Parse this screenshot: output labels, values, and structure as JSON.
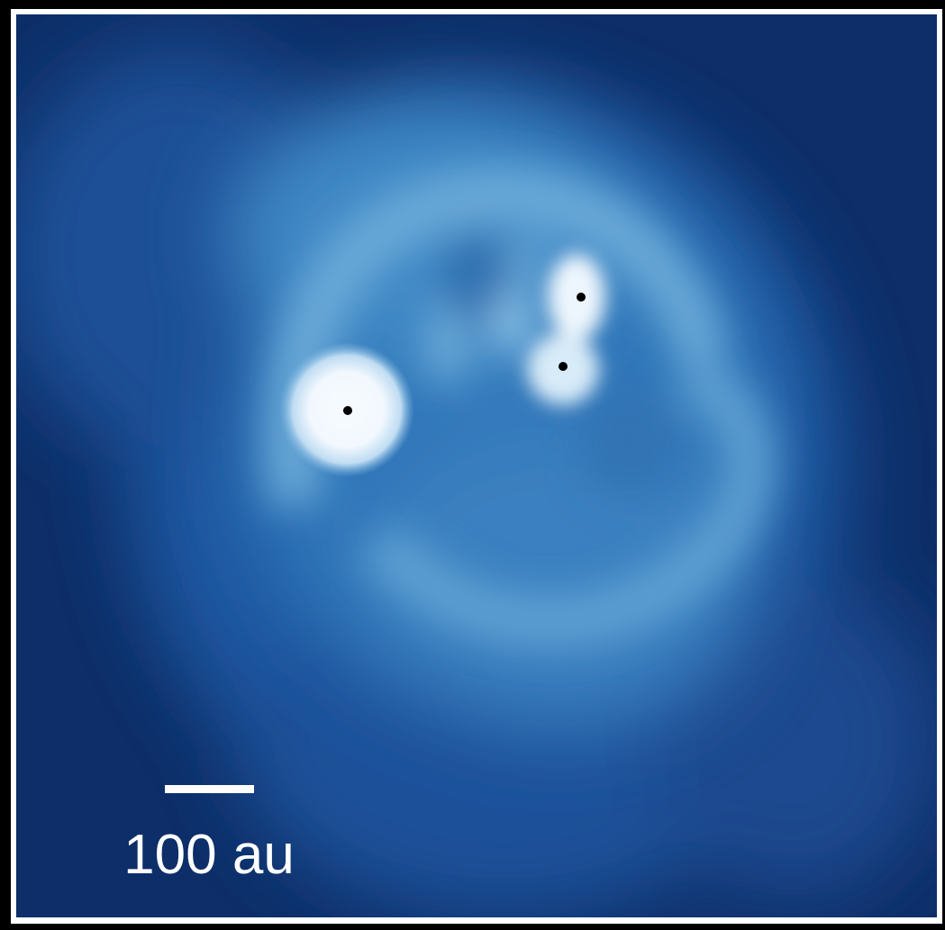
{
  "scale_bar": {
    "label": "100 au"
  }
}
